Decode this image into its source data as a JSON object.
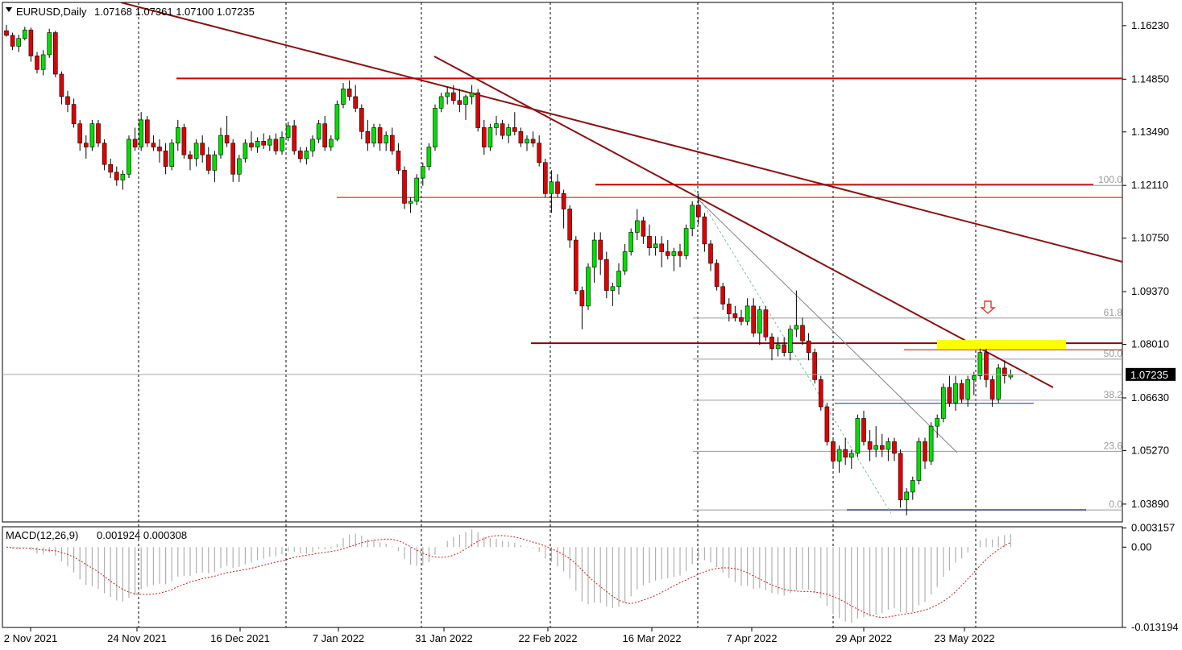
{
  "chart_data": {
    "type": "candlestick",
    "symbol_label": "EURUSD,Daily",
    "ohlc_label": "1.07168 1.07361 1.07100 1.07235",
    "last_price": 1.07235,
    "last_price_label": "1.07235",
    "y_ticks": [
      "1.16230",
      "1.14850",
      "1.13490",
      "1.12110",
      "1.10750",
      "1.09370",
      "1.08010",
      "1.06630",
      "1.05270",
      "1.03890"
    ],
    "y_range": [
      1.0343,
      1.1683
    ],
    "x_labels": [
      "2 Nov 2021",
      "24 Nov 2021",
      "16 Dec 2021",
      "7 Jan 2022",
      "31 Jan 2022",
      "22 Feb 2022",
      "16 Mar 2022",
      "7 Apr 2022",
      "29 Apr 2022",
      "23 May 2022"
    ],
    "fib_levels": [
      {
        "label": "100.0",
        "price": 1.1211
      },
      {
        "label": "61.8",
        "price": 1.0869
      },
      {
        "label": "50.0",
        "price": 1.0763
      },
      {
        "label": "38.2",
        "price": 1.0657
      },
      {
        "label": "23.6",
        "price": 1.0525
      },
      {
        "label": "0.0",
        "price": 1.0374
      }
    ],
    "key_levels": [
      1.1487,
      1.1213,
      1.118,
      1.0804,
      1.0787,
      1.0649,
      1.0374
    ],
    "resistance_zone": [
      1.0794,
      1.0806
    ],
    "series": [
      {
        "name": "EURUSD",
        "candles": [
          [
            1.161,
            1.1625,
            1.1595,
            1.1598
          ],
          [
            1.1598,
            1.1605,
            1.156,
            1.157
          ],
          [
            1.157,
            1.16,
            1.1555,
            1.159
          ],
          [
            1.159,
            1.162,
            1.1585,
            1.1612
          ],
          [
            1.1612,
            1.1618,
            1.153,
            1.1545
          ],
          [
            1.1545,
            1.1555,
            1.15,
            1.151
          ],
          [
            1.151,
            1.156,
            1.1495,
            1.1548
          ],
          [
            1.1548,
            1.1615,
            1.154,
            1.1605
          ],
          [
            1.1605,
            1.161,
            1.149,
            1.1498
          ],
          [
            1.1498,
            1.1505,
            1.142,
            1.144
          ],
          [
            1.144,
            1.1455,
            1.14,
            1.142
          ],
          [
            1.142,
            1.1435,
            1.136,
            1.137
          ],
          [
            1.137,
            1.138,
            1.13,
            1.132
          ],
          [
            1.132,
            1.134,
            1.128,
            1.131
          ],
          [
            1.131,
            1.138,
            1.13,
            1.137
          ],
          [
            1.137,
            1.138,
            1.131,
            1.132
          ],
          [
            1.132,
            1.133,
            1.125,
            1.1265
          ],
          [
            1.1265,
            1.128,
            1.123,
            1.1245
          ],
          [
            1.1245,
            1.126,
            1.121,
            1.1225
          ],
          [
            1.1225,
            1.125,
            1.12,
            1.124
          ],
          [
            1.124,
            1.134,
            1.123,
            1.133
          ],
          [
            1.133,
            1.136,
            1.13,
            1.131
          ],
          [
            1.131,
            1.14,
            1.13,
            1.138
          ],
          [
            1.138,
            1.139,
            1.131,
            1.132
          ],
          [
            1.132,
            1.134,
            1.13,
            1.131
          ],
          [
            1.131,
            1.133,
            1.127,
            1.13
          ],
          [
            1.13,
            1.132,
            1.124,
            1.126
          ],
          [
            1.126,
            1.133,
            1.125,
            1.132
          ],
          [
            1.132,
            1.138,
            1.13,
            1.136
          ],
          [
            1.136,
            1.137,
            1.128,
            1.129
          ],
          [
            1.129,
            1.13,
            1.125,
            1.128
          ],
          [
            1.128,
            1.133,
            1.126,
            1.132
          ],
          [
            1.132,
            1.134,
            1.127,
            1.129
          ],
          [
            1.129,
            1.131,
            1.124,
            1.125
          ],
          [
            1.125,
            1.13,
            1.122,
            1.129
          ],
          [
            1.129,
            1.136,
            1.128,
            1.134
          ],
          [
            1.134,
            1.139,
            1.131,
            1.132
          ],
          [
            1.132,
            1.133,
            1.122,
            1.124
          ],
          [
            1.124,
            1.129,
            1.122,
            1.128
          ],
          [
            1.128,
            1.133,
            1.127,
            1.132
          ],
          [
            1.132,
            1.135,
            1.13,
            1.131
          ],
          [
            1.131,
            1.1335,
            1.1295,
            1.1325
          ],
          [
            1.1325,
            1.1345,
            1.1305,
            1.1315
          ],
          [
            1.1315,
            1.134,
            1.13,
            1.133
          ],
          [
            1.133,
            1.1345,
            1.129,
            1.13
          ],
          [
            1.13,
            1.135,
            1.129,
            1.1335
          ],
          [
            1.1335,
            1.1375,
            1.1325,
            1.1365
          ],
          [
            1.1365,
            1.138,
            1.129,
            1.13
          ],
          [
            1.13,
            1.131,
            1.127,
            1.128
          ],
          [
            1.128,
            1.131,
            1.1265,
            1.13
          ],
          [
            1.13,
            1.134,
            1.1285,
            1.133
          ],
          [
            1.133,
            1.138,
            1.132,
            1.137
          ],
          [
            1.137,
            1.139,
            1.13,
            1.131
          ],
          [
            1.131,
            1.134,
            1.13,
            1.133
          ],
          [
            1.133,
            1.143,
            1.1325,
            1.142
          ],
          [
            1.142,
            1.1475,
            1.141,
            1.146
          ],
          [
            1.146,
            1.1482,
            1.143,
            1.144
          ],
          [
            1.144,
            1.147,
            1.14,
            1.141
          ],
          [
            1.141,
            1.142,
            1.133,
            1.135
          ],
          [
            1.135,
            1.138,
            1.13,
            1.132
          ],
          [
            1.132,
            1.137,
            1.131,
            1.136
          ],
          [
            1.136,
            1.137,
            1.13,
            1.132
          ],
          [
            1.132,
            1.135,
            1.13,
            1.134
          ],
          [
            1.134,
            1.136,
            1.129,
            1.13
          ],
          [
            1.13,
            1.132,
            1.124,
            1.125
          ],
          [
            1.125,
            1.126,
            1.115,
            1.1165
          ],
          [
            1.1165,
            1.118,
            1.114,
            1.117
          ],
          [
            1.117,
            1.124,
            1.116,
            1.123
          ],
          [
            1.123,
            1.127,
            1.121,
            1.126
          ],
          [
            1.126,
            1.132,
            1.125,
            1.131
          ],
          [
            1.131,
            1.142,
            1.13,
            1.141
          ],
          [
            1.141,
            1.145,
            1.14,
            1.144
          ],
          [
            1.144,
            1.1465,
            1.142,
            1.145
          ],
          [
            1.145,
            1.147,
            1.142,
            1.143
          ],
          [
            1.143,
            1.146,
            1.14,
            1.142
          ],
          [
            1.142,
            1.1445,
            1.138,
            1.144
          ],
          [
            1.144,
            1.147,
            1.142,
            1.145
          ],
          [
            1.145,
            1.146,
            1.135,
            1.136
          ],
          [
            1.136,
            1.138,
            1.129,
            1.131
          ],
          [
            1.131,
            1.137,
            1.13,
            1.136
          ],
          [
            1.136,
            1.139,
            1.134,
            1.137
          ],
          [
            1.137,
            1.138,
            1.133,
            1.134
          ],
          [
            1.134,
            1.137,
            1.132,
            1.136
          ],
          [
            1.136,
            1.14,
            1.134,
            1.135
          ],
          [
            1.135,
            1.136,
            1.131,
            1.132
          ],
          [
            1.132,
            1.134,
            1.13,
            1.133
          ],
          [
            1.133,
            1.135,
            1.131,
            1.132
          ],
          [
            1.132,
            1.134,
            1.126,
            1.127
          ],
          [
            1.127,
            1.128,
            1.118,
            1.119
          ],
          [
            1.119,
            1.125,
            1.114,
            1.122
          ],
          [
            1.122,
            1.124,
            1.118,
            1.119
          ],
          [
            1.119,
            1.12,
            1.11,
            1.115
          ],
          [
            1.115,
            1.116,
            1.105,
            1.107
          ],
          [
            1.107,
            1.108,
            1.093,
            1.094
          ],
          [
            1.094,
            1.095,
            1.084,
            1.09
          ],
          [
            1.09,
            1.101,
            1.089,
            1.1
          ],
          [
            1.1,
            1.109,
            1.096,
            1.107
          ],
          [
            1.107,
            1.109,
            1.098,
            1.102
          ],
          [
            1.102,
            1.104,
            1.092,
            1.094
          ],
          [
            1.094,
            1.096,
            1.09,
            1.095
          ],
          [
            1.095,
            1.101,
            1.093,
            1.099
          ],
          [
            1.099,
            1.106,
            1.098,
            1.104
          ],
          [
            1.104,
            1.11,
            1.103,
            1.109
          ],
          [
            1.109,
            1.115,
            1.107,
            1.112
          ],
          [
            1.112,
            1.113,
            1.106,
            1.108
          ],
          [
            1.108,
            1.111,
            1.103,
            1.105
          ],
          [
            1.105,
            1.108,
            1.103,
            1.106
          ],
          [
            1.106,
            1.108,
            1.1,
            1.104
          ],
          [
            1.104,
            1.107,
            1.102,
            1.103
          ],
          [
            1.103,
            1.105,
            1.099,
            1.104
          ],
          [
            1.104,
            1.106,
            1.1,
            1.103
          ],
          [
            1.103,
            1.111,
            1.102,
            1.11
          ],
          [
            1.11,
            1.117,
            1.108,
            1.116
          ],
          [
            1.116,
            1.119,
            1.111,
            1.113
          ],
          [
            1.113,
            1.114,
            1.104,
            1.106
          ],
          [
            1.106,
            1.107,
            1.099,
            1.101
          ],
          [
            1.101,
            1.102,
            1.094,
            1.095
          ],
          [
            1.095,
            1.096,
            1.089,
            1.0905
          ],
          [
            1.0905,
            1.092,
            1.086,
            1.088
          ],
          [
            1.088,
            1.09,
            1.086,
            1.087
          ],
          [
            1.087,
            1.089,
            1.085,
            1.086
          ],
          [
            1.086,
            1.092,
            1.085,
            1.09
          ],
          [
            1.09,
            1.092,
            1.082,
            1.083
          ],
          [
            1.083,
            1.09,
            1.08,
            1.089
          ],
          [
            1.089,
            1.09,
            1.081,
            1.082
          ],
          [
            1.082,
            1.083,
            1.076,
            1.079
          ],
          [
            1.079,
            1.082,
            1.077,
            1.08
          ],
          [
            1.08,
            1.082,
            1.077,
            1.078
          ],
          [
            1.078,
            1.085,
            1.076,
            1.084
          ],
          [
            1.084,
            1.094,
            1.082,
            1.085
          ],
          [
            1.085,
            1.087,
            1.08,
            1.081
          ],
          [
            1.081,
            1.083,
            1.076,
            1.078
          ],
          [
            1.078,
            1.079,
            1.07,
            1.071
          ],
          [
            1.071,
            1.072,
            1.063,
            1.064
          ],
          [
            1.064,
            1.065,
            1.054,
            1.055
          ],
          [
            1.055,
            1.056,
            1.048,
            1.05
          ],
          [
            1.05,
            1.054,
            1.047,
            1.053
          ],
          [
            1.053,
            1.056,
            1.049,
            1.051
          ],
          [
            1.051,
            1.053,
            1.048,
            1.052
          ],
          [
            1.052,
            1.062,
            1.051,
            1.061
          ],
          [
            1.061,
            1.063,
            1.054,
            1.055
          ],
          [
            1.055,
            1.058,
            1.05,
            1.053
          ],
          [
            1.053,
            1.059,
            1.051,
            1.054
          ],
          [
            1.054,
            1.057,
            1.051,
            1.053
          ],
          [
            1.053,
            1.056,
            1.05,
            1.055
          ],
          [
            1.055,
            1.056,
            1.05,
            1.052
          ],
          [
            1.052,
            1.053,
            1.038,
            1.04
          ],
          [
            1.04,
            1.043,
            1.036,
            1.042
          ],
          [
            1.042,
            1.046,
            1.04,
            1.045
          ],
          [
            1.045,
            1.056,
            1.044,
            1.055
          ],
          [
            1.055,
            1.056,
            1.048,
            1.05
          ],
          [
            1.05,
            1.06,
            1.049,
            1.059
          ],
          [
            1.059,
            1.062,
            1.056,
            1.061
          ],
          [
            1.061,
            1.07,
            1.06,
            1.069
          ],
          [
            1.069,
            1.072,
            1.064,
            1.065
          ],
          [
            1.065,
            1.072,
            1.063,
            1.07
          ],
          [
            1.07,
            1.071,
            1.065,
            1.066
          ],
          [
            1.066,
            1.072,
            1.064,
            1.071
          ],
          [
            1.071,
            1.073,
            1.067,
            1.072
          ],
          [
            1.072,
            1.079,
            1.071,
            1.078
          ],
          [
            1.078,
            1.079,
            1.069,
            1.071
          ],
          [
            1.071,
            1.072,
            1.064,
            1.066
          ],
          [
            1.066,
            1.075,
            1.065,
            1.074
          ],
          [
            1.074,
            1.076,
            1.07,
            1.072
          ],
          [
            1.07168,
            1.07361,
            1.071,
            1.07235
          ]
        ]
      },
      {
        "name": "MACD(12,26,9)",
        "values_label": "0.001924 0.000308",
        "axis_labels": [
          "0.003157",
          "0.00",
          "-0.013194"
        ],
        "range": [
          -0.0132,
          0.00335
        ]
      }
    ]
  }
}
